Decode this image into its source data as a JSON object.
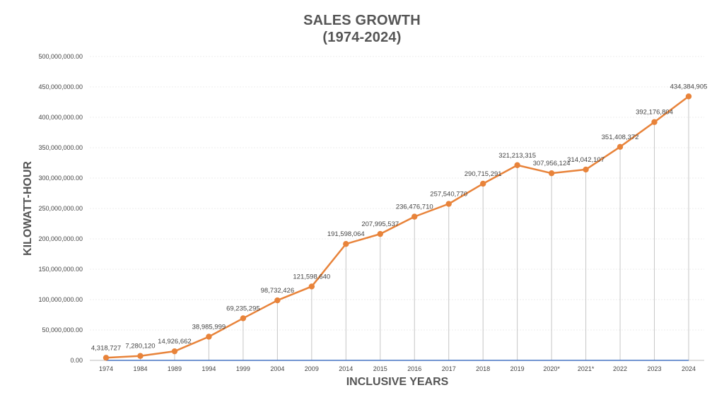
{
  "chart_data": {
    "type": "line",
    "title": "SALES GROWTH",
    "subtitle": "(1974-2024)",
    "xlabel": "INCLUSIVE YEARS",
    "ylabel": "KILOWATT-HOUR",
    "ylim": [
      0,
      500000000
    ],
    "y_ticks": [
      0,
      50000000,
      100000000,
      150000000,
      200000000,
      250000000,
      300000000,
      350000000,
      400000000,
      450000000,
      500000000
    ],
    "y_tick_labels": [
      "0.00",
      "50,000,000.00",
      "100,000,000.00",
      "150,000,000.00",
      "200,000,000.00",
      "250,000,000.00",
      "300,000,000.00",
      "350,000,000.00",
      "400,000,000.00",
      "450,000,000.00",
      "500,000,000.00"
    ],
    "categories": [
      "1974",
      "1984",
      "1989",
      "1994",
      "1999",
      "2004",
      "2009",
      "2014",
      "2015",
      "2016",
      "2017",
      "2018",
      "2019",
      "2020*",
      "2021*",
      "2022",
      "2023",
      "2024"
    ],
    "grid": true,
    "drop_lines": true,
    "series": [
      {
        "color": "#e8833a",
        "values": [
          4318727,
          7280120,
          14926662,
          38985999,
          69235295,
          98732426,
          121598640,
          191598064,
          207995537,
          236476710,
          257540770,
          290715291,
          321213315,
          307956124,
          314042107,
          351408372,
          392176804,
          434384905
        ],
        "labels": [
          "4,318,727",
          "7,280,120",
          "14,926,662",
          "38,985,999",
          "69,235,295",
          "98,732,426",
          "121,598,640",
          "191,598,064",
          "207,995,537",
          "236,476,710",
          "257,540,770",
          "290,715,291",
          "321,213,315",
          "307,956,124",
          "314,042,107",
          "351,408,372",
          "392,176,804",
          "434,384,905"
        ]
      },
      {
        "color": "#4472c4",
        "values": [
          0,
          0,
          0,
          0,
          0,
          0,
          0,
          0,
          0,
          0,
          0,
          0,
          0,
          0,
          0,
          0,
          0,
          0
        ]
      }
    ]
  }
}
